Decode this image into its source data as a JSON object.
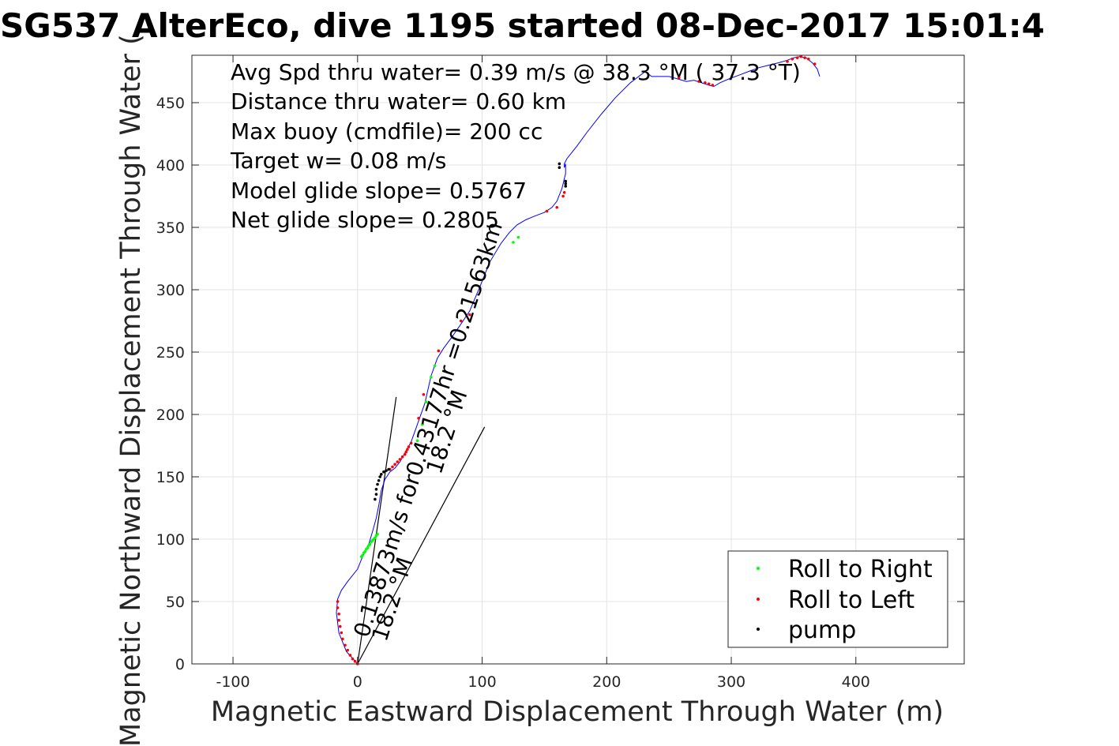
{
  "chart_data": {
    "type": "line",
    "title": "SG537 AlterEco, dive 1195 started 08-Dec-2017 15:01:4",
    "xlabel": "Magnetic Eastward Displacement Through Water (m)",
    "ylabel": "Magnetic Northward Displacement Through Water (",
    "xlim": [
      -133,
      487
    ],
    "ylim": [
      0,
      488
    ],
    "xticks": [
      -100,
      0,
      100,
      200,
      300,
      400
    ],
    "xtick_labels": [
      "-100",
      "0",
      "100",
      "200",
      "300",
      "400"
    ],
    "yticks": [
      0,
      50,
      100,
      150,
      200,
      250,
      300,
      350,
      400,
      450
    ],
    "ytick_labels": [
      "0",
      "50",
      "100",
      "150",
      "200",
      "250",
      "300",
      "350",
      "400",
      "450"
    ],
    "grid": true,
    "legend_position": "bottom-right",
    "annotations": [
      "Avg Spd thru water=  0.39 m/s @  38.3 °M ( 37.3 °T)",
      "Distance thru water=  0.60 km",
      "Max buoy (cmdfile)= 200 cc",
      "Target w= 0.08 m/s",
      "Model glide slope= 0.5767",
      "Net glide slope= 0.2805"
    ],
    "rotated_labels": [
      "0.13873m/s for0.43177hr =0.21563km",
      "18.2 °M",
      "18.2 °M"
    ],
    "track": {
      "color": "#0000ff",
      "x": [
        0,
        -9,
        -15,
        -17,
        -16,
        -13,
        -8,
        0,
        4,
        9,
        12,
        15,
        17,
        19,
        22,
        26,
        30,
        34,
        38,
        43,
        48,
        54,
        59,
        64,
        69,
        75,
        82,
        90,
        98,
        106,
        115,
        122,
        128,
        135,
        142,
        150,
        156,
        160,
        162,
        164,
        165,
        166,
        167,
        167,
        167,
        166,
        166,
        168,
        172,
        176,
        184,
        195,
        207,
        219,
        231,
        236,
        243,
        250,
        257,
        264,
        270,
        276,
        282,
        286,
        291,
        298,
        306,
        314,
        322,
        330,
        338,
        345,
        350,
        355,
        360,
        365,
        369,
        371
      ],
      "y": [
        0,
        10,
        25,
        41,
        52,
        59,
        66,
        76,
        86,
        96,
        106,
        117,
        127,
        139,
        148,
        154,
        157,
        162,
        169,
        178,
        192,
        209,
        231,
        245,
        253,
        261,
        271,
        283,
        302,
        322,
        337,
        346,
        352,
        356,
        359,
        362,
        366,
        371,
        376,
        381,
        385,
        389,
        393,
        397,
        401,
        398,
        401,
        405,
        410,
        415,
        426,
        440,
        454,
        466,
        475,
        471,
        471,
        471,
        469,
        467,
        468,
        466,
        464,
        463,
        466,
        469,
        472,
        475,
        478,
        480,
        482,
        484,
        486,
        487,
        486,
        482,
        477,
        471
      ]
    },
    "reference_lines": {
      "color": "#000000",
      "lines": [
        {
          "x": [
            0,
            31
          ],
          "y": [
            0,
            214
          ]
        },
        {
          "x": [
            0,
            102
          ],
          "y": [
            0,
            190
          ]
        }
      ]
    },
    "series": [
      {
        "name": "Roll to Right",
        "color": "#00ff00",
        "x": [
          3,
          4,
          5,
          6,
          7,
          8,
          9,
          10,
          11,
          12,
          13,
          14,
          15,
          16,
          48,
          52,
          55,
          59,
          62,
          125,
          129
        ],
        "y": [
          86,
          87,
          89,
          90,
          92,
          93,
          95,
          96,
          98,
          99,
          100,
          101,
          103,
          104,
          179,
          192,
          210,
          230,
          239,
          338,
          342
        ]
      },
      {
        "name": "Roll to Left",
        "color": "#ff0000",
        "x": [
          -16,
          -16,
          -15,
          -15,
          -14,
          -13,
          -12,
          -10,
          -8,
          -6,
          -4,
          -2,
          0,
          26,
          28,
          30,
          32,
          34,
          36,
          38,
          39,
          40,
          41,
          43,
          49,
          53,
          65,
          83,
          90,
          152,
          160,
          165,
          166,
          258,
          274,
          279,
          282,
          285,
          345,
          349,
          353,
          356,
          359,
          362,
          367
        ],
        "y": [
          50,
          45,
          40,
          35,
          30,
          25,
          20,
          15,
          11,
          7,
          4,
          2,
          0,
          156,
          158,
          160,
          162,
          164,
          166,
          168,
          170,
          172,
          174,
          177,
          197,
          216,
          251,
          275,
          280,
          363,
          366,
          375,
          378,
          470,
          467,
          466,
          465,
          464,
          483,
          485,
          486,
          487,
          486,
          485,
          481
        ]
      },
      {
        "name": "pump",
        "color": "#000000",
        "x": [
          14,
          15,
          15,
          16,
          17,
          18,
          19,
          21,
          23,
          25,
          162,
          162,
          167,
          167,
          167
        ],
        "y": [
          132,
          136,
          140,
          144,
          147,
          150,
          152,
          154,
          155,
          156,
          398,
          401,
          383,
          385,
          387
        ]
      }
    ]
  }
}
